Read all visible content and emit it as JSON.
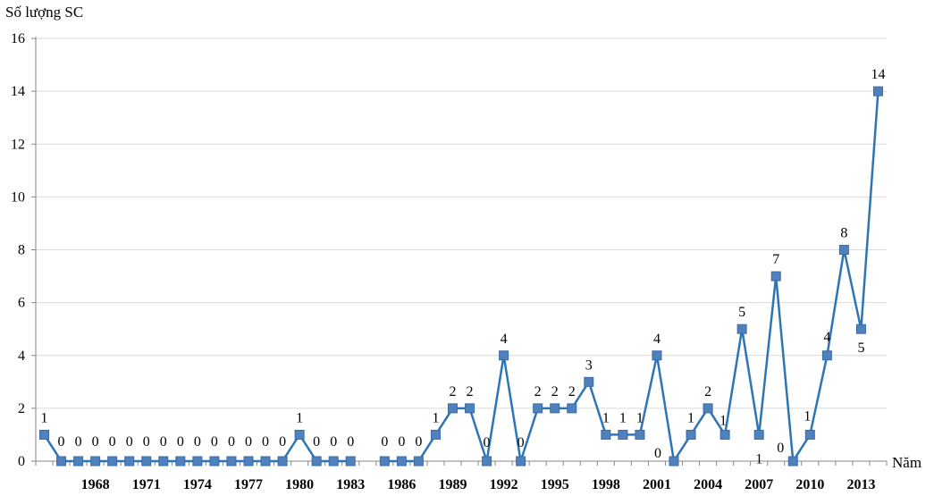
{
  "chart_data": {
    "type": "line",
    "ylabel": "Số lượng SC",
    "xlabel": "Năm",
    "ylim": [
      0,
      16
    ],
    "yticks": [
      0,
      2,
      4,
      6,
      8,
      10,
      12,
      14,
      16
    ],
    "xtick_labels": [
      "1968",
      "1971",
      "1974",
      "1977",
      "1980",
      "1983",
      "1986",
      "1989",
      "1992",
      "1995",
      "1998",
      "2001",
      "2004",
      "2007",
      "2010",
      "2013"
    ],
    "grid": "horizontal",
    "series_color": "#2e75b6",
    "marker_color": "#4f81bd",
    "segments": [
      {
        "x": [
          1965,
          1966,
          1967,
          1968,
          1969,
          1970,
          1971,
          1972,
          1973,
          1974,
          1975,
          1976,
          1977,
          1978,
          1979,
          1980,
          1981,
          1982,
          1983
        ],
        "y": [
          1,
          0,
          0,
          0,
          0,
          0,
          0,
          0,
          0,
          0,
          0,
          0,
          0,
          0,
          0,
          1,
          0,
          0,
          0
        ]
      },
      {
        "x": [
          1985,
          1986,
          1987,
          1988,
          1989,
          1990,
          1991,
          1992,
          1993,
          1994,
          1995,
          1996,
          1997,
          1998,
          1999,
          2000,
          2001,
          2002,
          2003,
          2004,
          2005,
          2006,
          2007,
          2008,
          2009,
          2010,
          2011,
          2012,
          2013,
          2014
        ],
        "y": [
          0,
          0,
          0,
          1,
          2,
          2,
          0,
          4,
          0,
          2,
          2,
          2,
          3,
          1,
          1,
          1,
          4,
          0,
          1,
          2,
          1,
          5,
          1,
          7,
          0,
          1,
          4,
          8,
          5,
          14
        ]
      }
    ]
  }
}
